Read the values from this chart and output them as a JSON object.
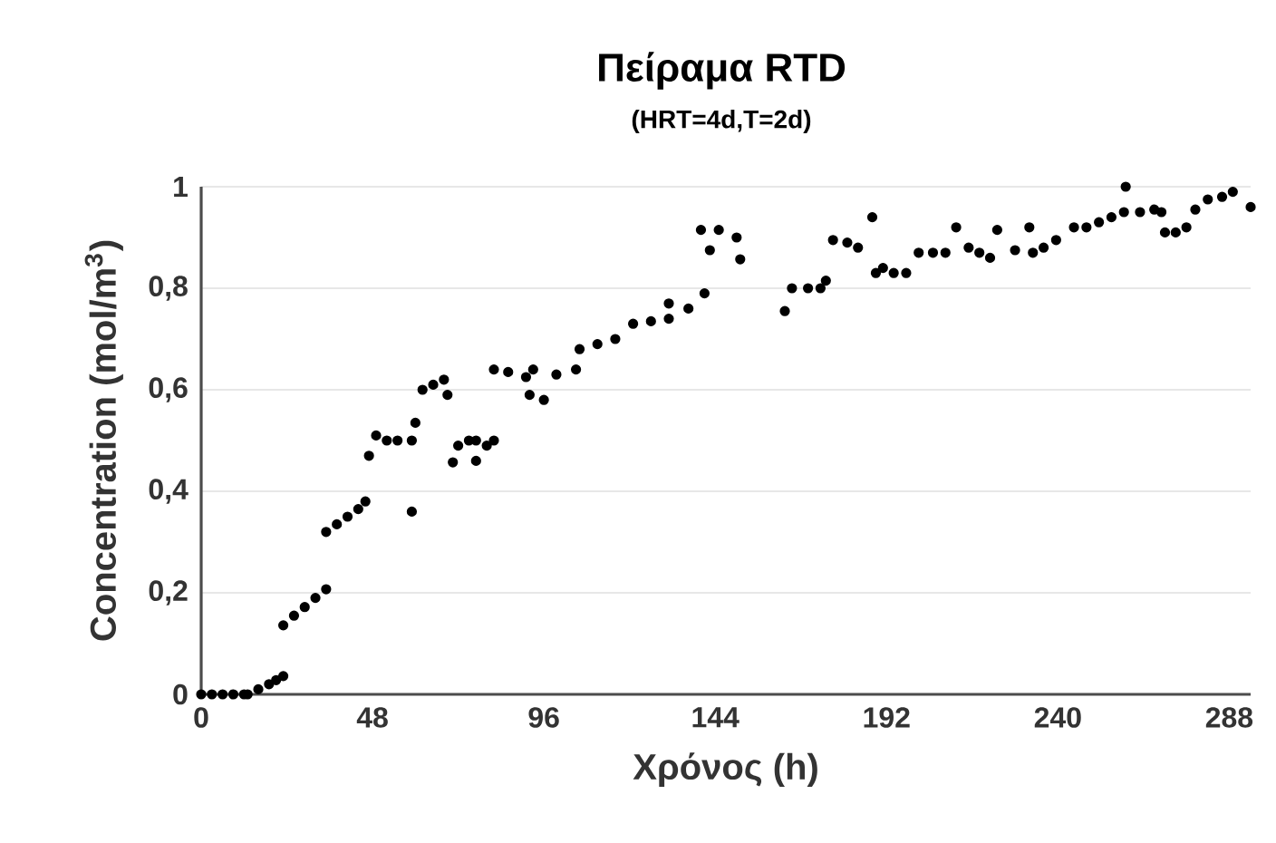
{
  "chart_data": {
    "type": "scatter",
    "title": "Πείραμα RTD",
    "subtitle": "(HRT=4d,T=2d)",
    "xlabel": "Χρόνος (h)",
    "ylabel": "Concentration (mol/m$^{3}$)",
    "x": [
      0,
      3,
      6,
      9,
      12,
      13,
      16,
      19,
      21,
      23,
      23,
      26,
      29,
      32,
      35,
      35,
      38,
      41,
      44,
      46,
      47,
      49,
      52,
      55,
      59,
      59,
      60,
      62,
      65,
      68,
      69,
      70.5,
      72,
      75,
      77,
      77,
      80,
      82,
      82,
      86,
      91,
      93,
      92,
      96,
      99.5,
      105,
      106,
      111,
      116,
      121,
      126,
      131,
      131,
      136.5,
      141,
      140,
      142.5,
      145,
      150,
      151,
      163.5,
      165.5,
      170,
      173.5,
      175,
      177,
      181,
      184,
      188,
      189,
      191,
      194,
      197.5,
      201,
      205,
      208.5,
      211.5,
      215,
      218,
      221,
      223,
      228,
      232,
      233,
      236,
      239.5,
      244.5,
      248,
      251.5,
      255,
      258.5,
      259,
      263,
      267,
      269,
      270,
      273,
      276,
      278.5,
      282,
      286,
      289,
      294
    ],
    "values": [
      0,
      0,
      0,
      0,
      0,
      0,
      0.01,
      0.02,
      0.028,
      0.036,
      0.136,
      0.155,
      0.172,
      0.19,
      0.207,
      0.32,
      0.335,
      0.35,
      0.365,
      0.38,
      0.47,
      0.51,
      0.5,
      0.5,
      0.5,
      0.36,
      0.535,
      0.6,
      0.61,
      0.62,
      0.59,
      0.457,
      0.49,
      0.5,
      0.5,
      0.46,
      0.49,
      0.5,
      0.64,
      0.635,
      0.625,
      0.64,
      0.59,
      0.58,
      0.63,
      0.64,
      0.68,
      0.69,
      0.7,
      0.73,
      0.735,
      0.74,
      0.77,
      0.76,
      0.79,
      0.915,
      0.875,
      0.915,
      0.9,
      0.857,
      0.755,
      0.8,
      0.8,
      0.8,
      0.815,
      0.895,
      0.89,
      0.88,
      0.94,
      0.83,
      0.84,
      0.83,
      0.83,
      0.87,
      0.87,
      0.87,
      0.92,
      0.88,
      0.87,
      0.86,
      0.915,
      0.875,
      0.92,
      0.87,
      0.88,
      0.895,
      0.92,
      0.92,
      0.93,
      0.94,
      0.95,
      1.0,
      0.95,
      0.955,
      0.95,
      0.91,
      0.91,
      0.92,
      0.955,
      0.975,
      0.98,
      0.99,
      0.96
    ],
    "color": "#000000",
    "grid": "y",
    "xlim": [
      0,
      294
    ],
    "xticks": [
      0,
      48,
      96,
      144,
      192,
      240,
      288
    ],
    "ylim": [
      0,
      1
    ],
    "yticks": [
      0,
      {
        "value": 0.2,
        "label": "0,2"
      },
      {
        "value": 0.4,
        "label": "0,4"
      },
      {
        "value": 0.6,
        "label": "0,6"
      },
      {
        "value": 0.8,
        "label": "0,8"
      },
      1
    ]
  }
}
